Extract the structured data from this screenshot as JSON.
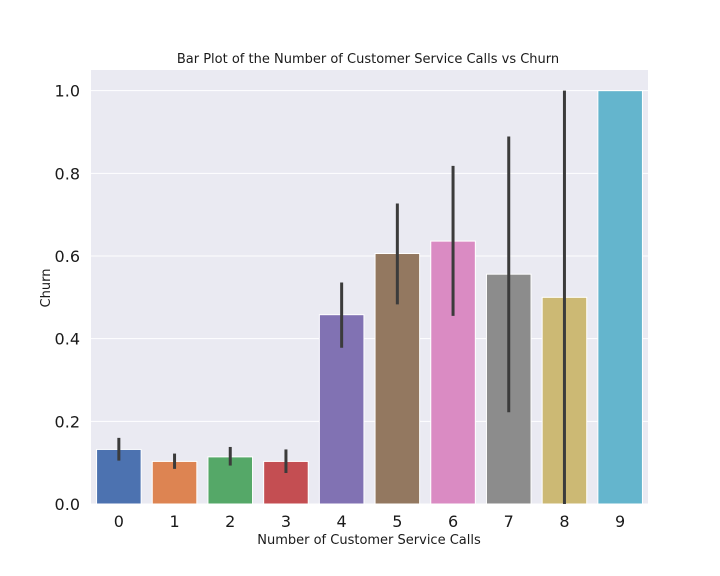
{
  "chart_data": {
    "type": "bar",
    "title": "Bar Plot of the Number of Customer Service Calls vs Churn",
    "xlabel": "Number of Customer Service Calls",
    "ylabel": "Churn",
    "categories": [
      "0",
      "1",
      "2",
      "3",
      "4",
      "5",
      "6",
      "7",
      "8",
      "9"
    ],
    "values": [
      0.132,
      0.103,
      0.114,
      0.103,
      0.458,
      0.606,
      0.636,
      0.556,
      0.5,
      1.0
    ],
    "error_low": [
      0.105,
      0.085,
      0.093,
      0.075,
      0.378,
      0.483,
      0.455,
      0.222,
      0.0,
      1.0
    ],
    "error_high": [
      0.16,
      0.122,
      0.138,
      0.132,
      0.536,
      0.727,
      0.818,
      0.889,
      1.0,
      1.0
    ],
    "colors": [
      "#4c72b0",
      "#dd8452",
      "#55a868",
      "#c44e52",
      "#8172b3",
      "#937860",
      "#da8bc3",
      "#8c8c8c",
      "#ccb974",
      "#64b5cd"
    ],
    "ylim": [
      0,
      1.05
    ],
    "yticks": [
      "0.0",
      "0.2",
      "0.4",
      "0.6",
      "0.8",
      "1.0"
    ],
    "grid": true,
    "background": "#eaeaf2",
    "errorbar_color": "#3b3b3b"
  }
}
